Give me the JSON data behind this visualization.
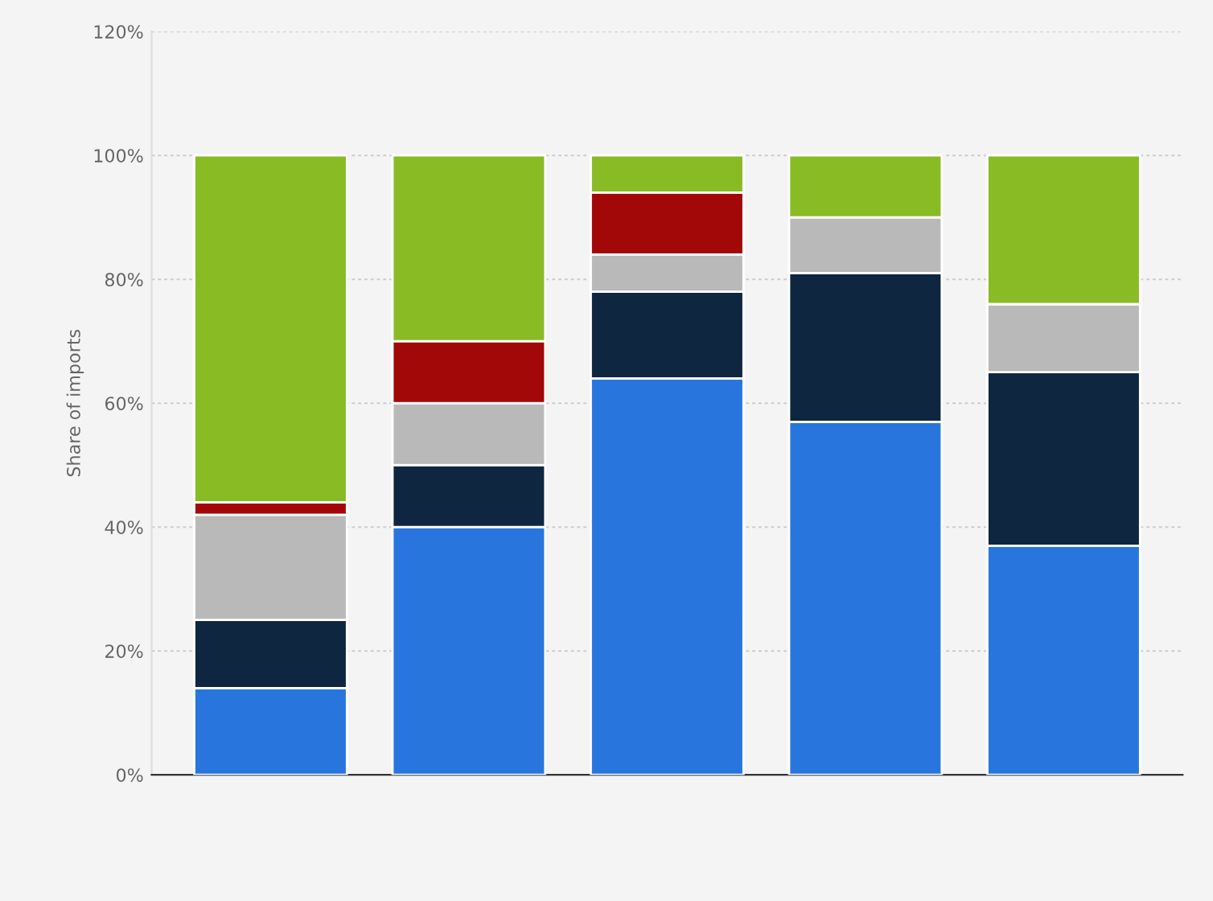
{
  "chart_data": {
    "type": "bar",
    "stacked": true,
    "ylabel": "Share of imports",
    "categories": [
      null,
      null,
      null,
      null,
      null
    ],
    "series": [
      {
        "color": "#2876dd",
        "values": [
          14,
          40,
          64,
          57,
          37
        ]
      },
      {
        "color": "#0f2640",
        "values": [
          11,
          10,
          14,
          24,
          28
        ]
      },
      {
        "color": "#b9b9b9",
        "values": [
          17,
          10,
          6,
          9,
          11
        ]
      },
      {
        "color": "#a20808",
        "values": [
          2,
          10,
          10,
          0,
          0
        ]
      },
      {
        "color": "#89bb25",
        "values": [
          56,
          30,
          6,
          10,
          24
        ]
      }
    ],
    "ylim": [
      0,
      120
    ],
    "yticks": [
      {
        "value": 0,
        "label": "0%"
      },
      {
        "value": 20,
        "label": "20%"
      },
      {
        "value": 40,
        "label": "40%"
      },
      {
        "value": 60,
        "label": "60%"
      },
      {
        "value": 80,
        "label": "80%"
      },
      {
        "value": 100,
        "label": "100%"
      },
      {
        "value": 120,
        "label": "120%"
      }
    ],
    "grid": "y",
    "legend": false
  }
}
